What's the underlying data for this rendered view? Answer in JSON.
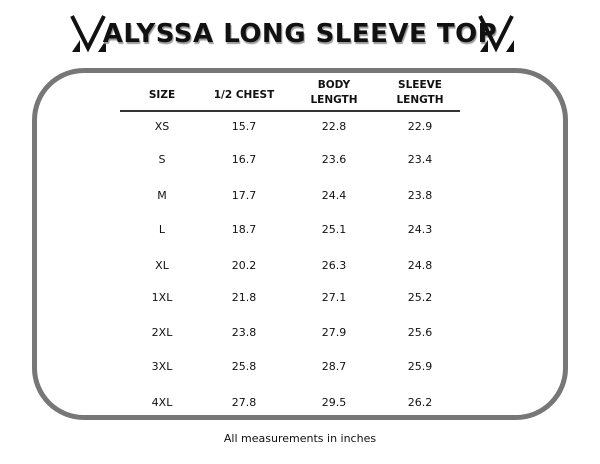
{
  "title": "ALYSSA LONG SLEEVE TOP",
  "logo_icon": "v-logo-icon",
  "border_color": "#777777",
  "headers": [
    "SIZE",
    "1/2 CHEST",
    "BODY\nLENGTH",
    "SLEEVE\nLENGTH"
  ],
  "rows": [
    [
      "XS",
      "15.7",
      "22.8",
      "22.9"
    ],
    [
      "S",
      "16.7",
      "23.6",
      "23.4"
    ],
    [
      "M",
      "17.7",
      "24.4",
      "23.8"
    ],
    [
      "L",
      "18.7",
      "25.1",
      "24.3"
    ],
    [
      "XL",
      "20.2",
      "26.3",
      "24.8"
    ],
    [
      "1XL",
      "21.8",
      "27.1",
      "25.2"
    ],
    [
      "2XL",
      "23.8",
      "27.9",
      "25.6"
    ],
    [
      "3XL",
      "25.8",
      "28.7",
      "25.9"
    ],
    [
      "4XL",
      "27.8",
      "29.5",
      "26.2"
    ]
  ],
  "footnote": "All measurements in inches"
}
